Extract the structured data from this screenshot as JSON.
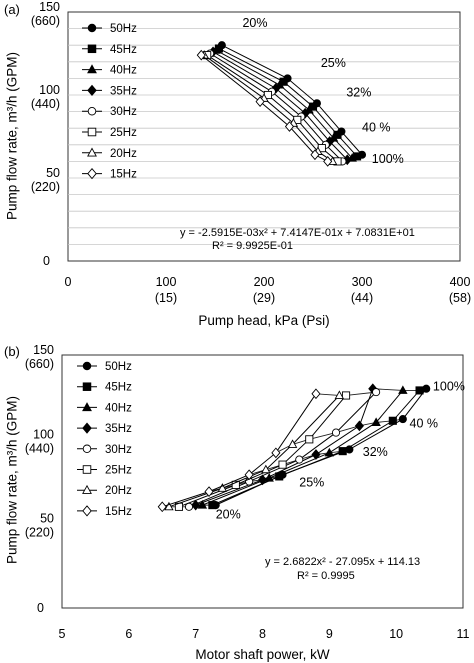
{
  "chart_data": [
    {
      "panel_label": "(a)",
      "type": "line",
      "xlabel": "Pump head, kPa (Psi)",
      "ylabel": "Pump flow rate, m³/h (GPM)",
      "xlim": [
        0,
        400
      ],
      "ylim": [
        0,
        150
      ],
      "x_ticks": [
        {
          "value": 0,
          "label": "0",
          "sub": ""
        },
        {
          "value": 100,
          "label": "100",
          "sub": "(15)"
        },
        {
          "value": 200,
          "label": "200",
          "sub": "(29)"
        },
        {
          "value": 300,
          "label": "300",
          "sub": "(44)"
        },
        {
          "value": 400,
          "label": "400",
          "sub": "(58)"
        }
      ],
      "y_ticks": [
        {
          "value": 0,
          "label": "0",
          "sub": ""
        },
        {
          "value": 50,
          "label": "50",
          "sub": "(220)"
        },
        {
          "value": 100,
          "label": "100",
          "sub": "(440)"
        },
        {
          "value": 150,
          "label": "150",
          "sub": "(660)"
        }
      ],
      "grid": "horizontal",
      "legend_position": "left",
      "series": [
        {
          "name": "50Hz",
          "marker": "circle-filled",
          "x": [
            157,
            224,
            254,
            279,
            300
          ],
          "y": [
            130,
            110,
            95,
            78,
            64
          ]
        },
        {
          "name": "45Hz",
          "marker": "square-filled",
          "x": [
            154,
            220,
            250,
            275,
            295
          ],
          "y": [
            128,
            108,
            93,
            76,
            63
          ]
        },
        {
          "name": "40Hz",
          "marker": "triangle-filled",
          "x": [
            151,
            216,
            246,
            271,
            290
          ],
          "y": [
            127,
            106,
            91,
            74,
            62
          ]
        },
        {
          "name": "35Hz",
          "marker": "diamond-filled",
          "x": [
            148,
            212,
            242,
            267,
            285
          ],
          "y": [
            126,
            104,
            89,
            72,
            61
          ]
        },
        {
          "name": "30Hz",
          "marker": "circle-open",
          "x": [
            145,
            208,
            238,
            263,
            280
          ],
          "y": [
            125,
            102,
            87,
            70,
            60
          ]
        },
        {
          "name": "25Hz",
          "marker": "square-open",
          "x": [
            142,
            204,
            234,
            259,
            275
          ],
          "y": [
            124,
            100,
            85,
            68,
            60
          ]
        },
        {
          "name": "20Hz",
          "marker": "triangle-open",
          "x": [
            139,
            200,
            230,
            255,
            270
          ],
          "y": [
            124,
            98,
            83,
            66,
            60
          ]
        },
        {
          "name": "15Hz",
          "marker": "diamond-open",
          "x": [
            136,
            196,
            226,
            252,
            265
          ],
          "y": [
            124,
            96,
            81,
            64,
            60
          ]
        }
      ],
      "annotations": [
        {
          "text": "20%",
          "x": 178,
          "y": 141
        },
        {
          "text": "25%",
          "x": 258,
          "y": 117
        },
        {
          "text": "32%",
          "x": 284,
          "y": 99
        },
        {
          "text": "40 %",
          "x": 300,
          "y": 78
        },
        {
          "text": "100%",
          "x": 310,
          "y": 59
        }
      ],
      "equation": [
        "y = -2.5915E-03x² + 7.4147E-01x + 7.0831E+01",
        "R² = 9.9925E-01"
      ]
    },
    {
      "panel_label": "(b)",
      "type": "line",
      "xlabel": "Motor shaft power, kW",
      "ylabel": "Pump flow rate, m³/h (GPM)",
      "xlim": [
        5,
        11
      ],
      "ylim": [
        0,
        150
      ],
      "x_ticks": [
        {
          "value": 5,
          "label": "5",
          "sub": ""
        },
        {
          "value": 6,
          "label": "6",
          "sub": ""
        },
        {
          "value": 7,
          "label": "7",
          "sub": ""
        },
        {
          "value": 8,
          "label": "8",
          "sub": ""
        },
        {
          "value": 9,
          "label": "9",
          "sub": ""
        },
        {
          "value": 10,
          "label": "10",
          "sub": ""
        },
        {
          "value": 11,
          "label": "11",
          "sub": ""
        }
      ],
      "y_ticks": [
        {
          "value": 0,
          "label": "0",
          "sub": ""
        },
        {
          "value": 50,
          "label": "50",
          "sub": "(220)"
        },
        {
          "value": 100,
          "label": "100",
          "sub": "(440)"
        },
        {
          "value": 150,
          "label": "150",
          "sub": "(660)"
        }
      ],
      "grid": "none",
      "legend_position": "left",
      "series": [
        {
          "name": "50Hz",
          "marker": "circle-filled",
          "x": [
            7.3,
            8.3,
            9.3,
            10.1,
            10.45
          ],
          "y": [
            61,
            79,
            94,
            112,
            130
          ]
        },
        {
          "name": "45Hz",
          "marker": "square-filled",
          "x": [
            7.25,
            8.25,
            9.2,
            9.95,
            10.35
          ],
          "y": [
            61,
            78,
            93,
            111,
            129
          ]
        },
        {
          "name": "40Hz",
          "marker": "triangle-filled",
          "x": [
            7.1,
            8.1,
            9.0,
            9.7,
            10.1
          ],
          "y": [
            61,
            77,
            92,
            110,
            129
          ]
        },
        {
          "name": "35Hz",
          "marker": "diamond-filled",
          "x": [
            7.0,
            8.0,
            8.8,
            9.45,
            9.65
          ],
          "y": [
            61,
            76,
            91,
            108,
            130
          ]
        },
        {
          "name": "30Hz",
          "marker": "circle-open",
          "x": [
            6.9,
            7.8,
            8.55,
            9.1,
            9.7
          ],
          "y": [
            60,
            75,
            88,
            104,
            128
          ]
        },
        {
          "name": "25Hz",
          "marker": "square-open",
          "x": [
            6.75,
            7.6,
            8.3,
            8.7,
            9.25
          ],
          "y": [
            60,
            73,
            85,
            100,
            126
          ]
        },
        {
          "name": "20Hz",
          "marker": "triangle-open",
          "x": [
            6.6,
            7.4,
            8.05,
            8.45,
            9.15
          ],
          "y": [
            60,
            71,
            82,
            97,
            126
          ]
        },
        {
          "name": "15Hz",
          "marker": "diamond-open",
          "x": [
            6.5,
            7.2,
            7.8,
            8.2,
            8.8
          ],
          "y": [
            60,
            69,
            79,
            92,
            127
          ]
        }
      ],
      "annotations": [
        {
          "text": "20%",
          "x": 7.3,
          "y": 53
        },
        {
          "text": "25%",
          "x": 8.55,
          "y": 72
        },
        {
          "text": "32%",
          "x": 9.5,
          "y": 90
        },
        {
          "text": "40 %",
          "x": 10.2,
          "y": 107
        },
        {
          "text": "100%",
          "x": 10.55,
          "y": 129
        }
      ],
      "equation": [
        "y = 2.6822x² - 27.095x + 114.13",
        "R² = 0.9995"
      ]
    }
  ]
}
